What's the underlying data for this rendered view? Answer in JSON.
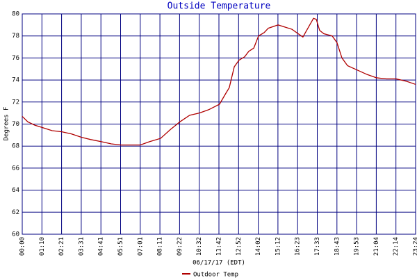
{
  "chart_data": {
    "type": "line",
    "title": "Outside Temperature",
    "x_label": "06/17/17 (EDT)",
    "y_label": "Degrees F",
    "x": [
      0,
      20,
      45,
      70,
      107,
      142,
      177,
      212,
      244,
      284,
      319,
      354,
      389,
      423,
      456,
      496,
      531,
      565,
      600,
      635,
      668,
      707,
      730,
      742,
      760,
      777,
      797,
      812,
      830,
      847,
      867,
      882,
      917,
      942,
      967,
      989,
      1006,
      1026,
      1044,
      1054,
      1066,
      1081,
      1111,
      1128,
      1146,
      1166,
      1201,
      1236,
      1270,
      1305,
      1340,
      1375,
      1410
    ],
    "series": [
      {
        "name": "Outdoor Temp",
        "color": "#b00000",
        "values": [
          70.7,
          70.2,
          69.9,
          69.7,
          69.4,
          69.3,
          69.1,
          68.8,
          68.6,
          68.4,
          68.2,
          68.1,
          68.1,
          68.1,
          68.4,
          68.7,
          69.5,
          70.2,
          70.8,
          71.0,
          71.3,
          71.8,
          72.8,
          73.3,
          75.2,
          75.8,
          76.1,
          76.6,
          76.9,
          78.0,
          78.3,
          78.7,
          79.0,
          78.8,
          78.6,
          78.2,
          77.9,
          78.8,
          79.6,
          79.5,
          78.5,
          78.2,
          78.0,
          77.4,
          76.0,
          75.3,
          74.9,
          74.5,
          74.2,
          74.1,
          74.1,
          73.9,
          73.6
        ]
      }
    ],
    "xlim": [
      0,
      1410
    ],
    "xticks": [
      {
        "value": 0,
        "label": "00:00"
      },
      {
        "value": 70.5,
        "label": "01:10"
      },
      {
        "value": 141,
        "label": "02:21"
      },
      {
        "value": 211.5,
        "label": "03:31"
      },
      {
        "value": 282,
        "label": "04:41"
      },
      {
        "value": 352.5,
        "label": "05:51"
      },
      {
        "value": 423,
        "label": "07:01"
      },
      {
        "value": 493.5,
        "label": "08:11"
      },
      {
        "value": 564,
        "label": "09:22"
      },
      {
        "value": 634.5,
        "label": "10:32"
      },
      {
        "value": 705,
        "label": "11:42"
      },
      {
        "value": 775.5,
        "label": "12:52"
      },
      {
        "value": 846,
        "label": "14:02"
      },
      {
        "value": 916.5,
        "label": "15:12"
      },
      {
        "value": 987,
        "label": "16:23"
      },
      {
        "value": 1057.5,
        "label": "17:33"
      },
      {
        "value": 1128,
        "label": "18:43"
      },
      {
        "value": 1198.5,
        "label": "19:53"
      },
      {
        "value": 1269,
        "label": "21:04"
      },
      {
        "value": 1339.5,
        "label": "22:14"
      },
      {
        "value": 1410,
        "label": "23:24"
      }
    ],
    "ylim": [
      60,
      80
    ],
    "yticks": [
      60,
      62,
      64,
      66,
      68,
      70,
      72,
      74,
      76,
      78,
      80
    ],
    "grid": true,
    "grid_color": "#000080",
    "legend": "bottom"
  }
}
